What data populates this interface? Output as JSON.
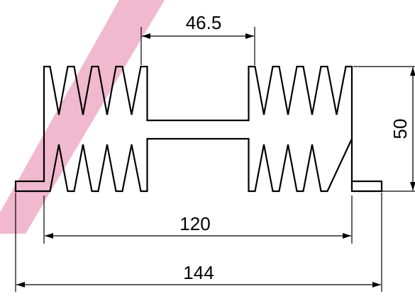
{
  "dimensions": {
    "fin_gap": "46.5",
    "height": "50",
    "inner_width": "120",
    "overall_width": "144"
  },
  "colors": {
    "background": "#ffffff",
    "line": "#000000",
    "watermark_stripe": "#f1b9cd"
  }
}
